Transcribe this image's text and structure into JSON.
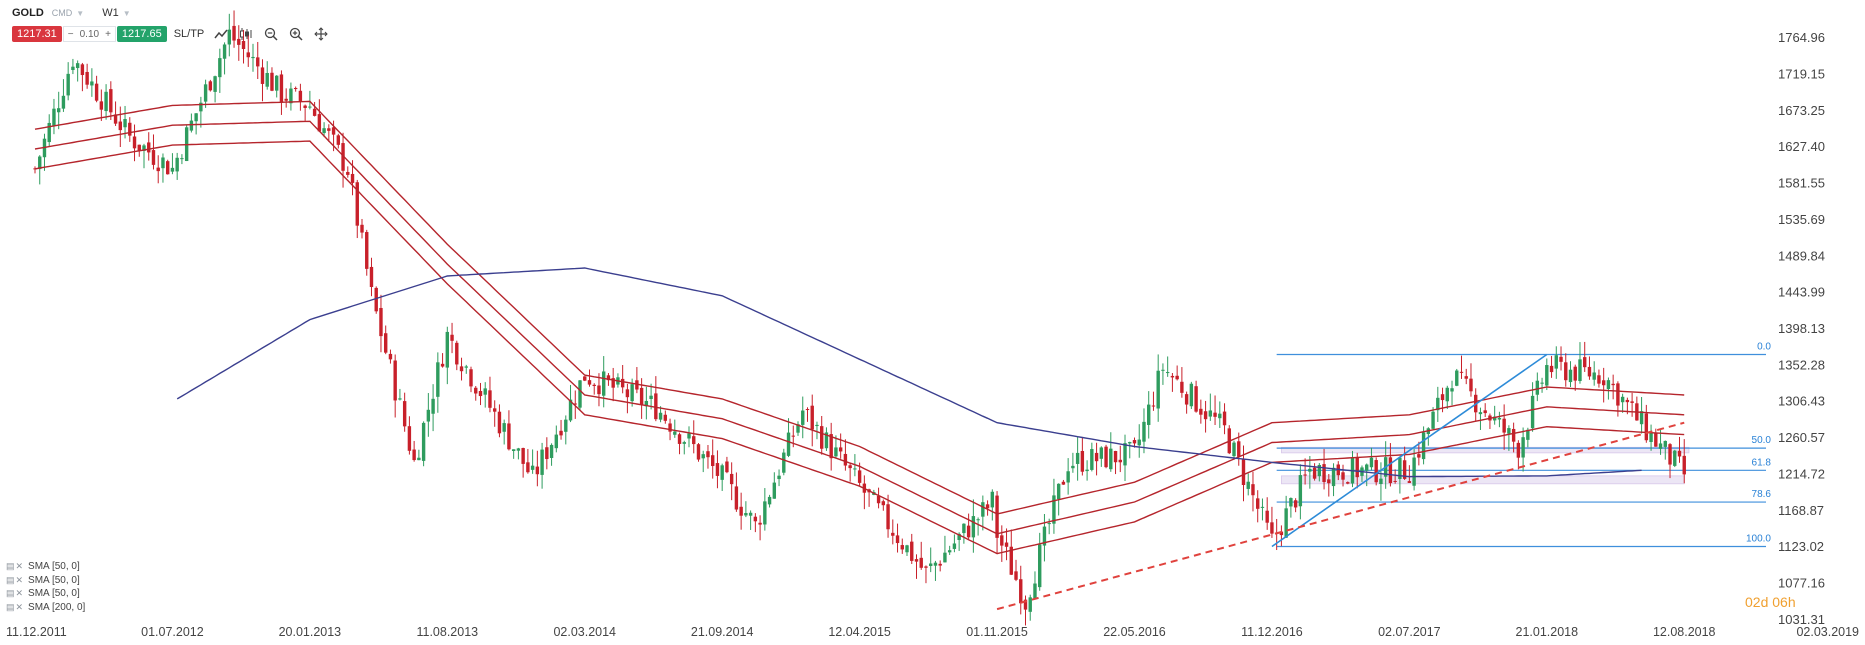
{
  "header": {
    "symbol": "GOLD",
    "market": "CMD",
    "timeframe": "W1"
  },
  "price_bar": {
    "bid": "1217.31",
    "minus": "−",
    "spread": "0.10",
    "plus": "+",
    "ask": "1217.65",
    "sltp": "SL/TP"
  },
  "toolbar_icons": [
    "line-chart-icon",
    "candles-icon",
    "zoom-out-icon",
    "zoom-in-icon",
    "crosshair-icon"
  ],
  "indicators": [
    {
      "label": "SMA [50, 0]"
    },
    {
      "label": "SMA [50, 0]"
    },
    {
      "label": "SMA [50, 0]"
    },
    {
      "label": "SMA [200, 0]"
    }
  ],
  "countdown": "02d 06h",
  "colors": {
    "bull": "#2e9c5e",
    "bear": "#c8202a",
    "sma_envelope": "#b5252c",
    "sma200": "#3b3f8f",
    "fib": "#3f8fdc",
    "trend_up": "#2d8bd8",
    "trend_dashed": "#e0423d",
    "zone": "#ece6f5",
    "axis_text": "#444444",
    "fib_text": "#2a82d6"
  },
  "chart_data": {
    "type": "candlestick",
    "instrument": "GOLD",
    "timeframe": "W1",
    "y_ticks": [
      1764.96,
      1719.15,
      1673.25,
      1627.4,
      1581.55,
      1535.69,
      1489.84,
      1443.99,
      1398.13,
      1352.28,
      1306.43,
      1260.57,
      1214.72,
      1168.87,
      1123.02,
      1077.16,
      1031.31
    ],
    "ylim": [
      1031.31,
      1764.96
    ],
    "x_ticks": [
      "11.12.2011",
      "01.07.2012",
      "20.01.2013",
      "11.08.2013",
      "02.03.2014",
      "21.09.2014",
      "12.04.2015",
      "01.11.2015",
      "22.05.2016",
      "11.12.2016",
      "02.07.2017",
      "21.01.2018",
      "12.08.2018",
      "02.03.2019"
    ],
    "xlim": [
      "11.12.2011",
      "02.03.2019"
    ],
    "close_path": [
      [
        "11.12.2011",
        1600
      ],
      [
        "05.02.2012",
        1740
      ],
      [
        "29.04.2012",
        1640
      ],
      [
        "01.07.2012",
        1600
      ],
      [
        "23.09.2012",
        1770
      ],
      [
        "09.12.2012",
        1695
      ],
      [
        "20.01.2013",
        1680
      ],
      [
        "17.03.2013",
        1600
      ],
      [
        "21.04.2013",
        1440
      ],
      [
        "23.06.2013",
        1230
      ],
      [
        "11.08.2013",
        1390
      ],
      [
        "15.12.2013",
        1210
      ],
      [
        "02.03.2014",
        1340
      ],
      [
        "15.06.2014",
        1300
      ],
      [
        "21.09.2014",
        1210
      ],
      [
        "09.11.2014",
        1150
      ],
      [
        "18.01.2015",
        1295
      ],
      [
        "12.04.2015",
        1200
      ],
      [
        "19.07.2015",
        1090
      ],
      [
        "25.10.2015",
        1180
      ],
      [
        "01.11.2015",
        1140
      ],
      [
        "13.12.2015",
        1055
      ],
      [
        "14.02.2016",
        1230
      ],
      [
        "22.05.2016",
        1240
      ],
      [
        "03.07.2016",
        1350
      ],
      [
        "02.10.2016",
        1270
      ],
      [
        "11.12.2016",
        1130
      ],
      [
        "05.02.2017",
        1220
      ],
      [
        "02.07.2017",
        1220
      ],
      [
        "03.09.2017",
        1340
      ],
      [
        "10.12.2017",
        1250
      ],
      [
        "21.01.2018",
        1350
      ],
      [
        "15.04.2018",
        1340
      ],
      [
        "17.06.2018",
        1270
      ],
      [
        "12.08.2018",
        1215
      ]
    ],
    "sma200": [
      [
        "08.07.2012",
        1310
      ],
      [
        "20.01.2013",
        1410
      ],
      [
        "11.08.2013",
        1465
      ],
      [
        "02.03.2014",
        1475
      ],
      [
        "21.09.2014",
        1440
      ],
      [
        "12.04.2015",
        1360
      ],
      [
        "01.11.2015",
        1280
      ],
      [
        "22.05.2016",
        1250
      ],
      [
        "11.12.2016",
        1230
      ],
      [
        "02.07.2017",
        1212
      ],
      [
        "21.01.2018",
        1213
      ],
      [
        "10.06.2018",
        1220
      ]
    ],
    "sma_envelope": {
      "middle": [
        [
          "11.12.2011",
          1625
        ],
        [
          "01.07.2012",
          1655
        ],
        [
          "20.01.2013",
          1660
        ],
        [
          "11.08.2013",
          1480
        ],
        [
          "02.03.2014",
          1315
        ],
        [
          "21.09.2014",
          1285
        ],
        [
          "12.04.2015",
          1225
        ],
        [
          "01.11.2015",
          1140
        ],
        [
          "22.05.2016",
          1180
        ],
        [
          "11.12.2016",
          1255
        ],
        [
          "02.07.2017",
          1265
        ],
        [
          "21.01.2018",
          1300
        ],
        [
          "12.08.2018",
          1290
        ]
      ],
      "offsets": [
        -25,
        0,
        25
      ]
    },
    "fibonacci": {
      "levels": [
        {
          "label": "0.0",
          "price": 1366
        },
        {
          "label": "50.0",
          "price": 1248
        },
        {
          "label": "61.8",
          "price": 1220
        },
        {
          "label": "78.6",
          "price": 1180
        },
        {
          "label": "100.0",
          "price": 1124
        }
      ],
      "from": "18.12.2016",
      "to": "12.08.2018"
    },
    "trendline_up": {
      "from": [
        "11.12.2016",
        1124
      ],
      "to": [
        "21.01.2018",
        1366
      ]
    },
    "trendline_dashed": {
      "from": [
        "01.11.2015",
        1045
      ],
      "to": [
        "12.08.2018",
        1280
      ]
    },
    "zones": [
      {
        "from": [
          "25.12.2016",
          1249
        ],
        "to": [
          "19.08.2018",
          1242
        ]
      },
      {
        "from": [
          "25.12.2016",
          1213
        ],
        "to": [
          "12.08.2018",
          1203
        ]
      }
    ]
  }
}
